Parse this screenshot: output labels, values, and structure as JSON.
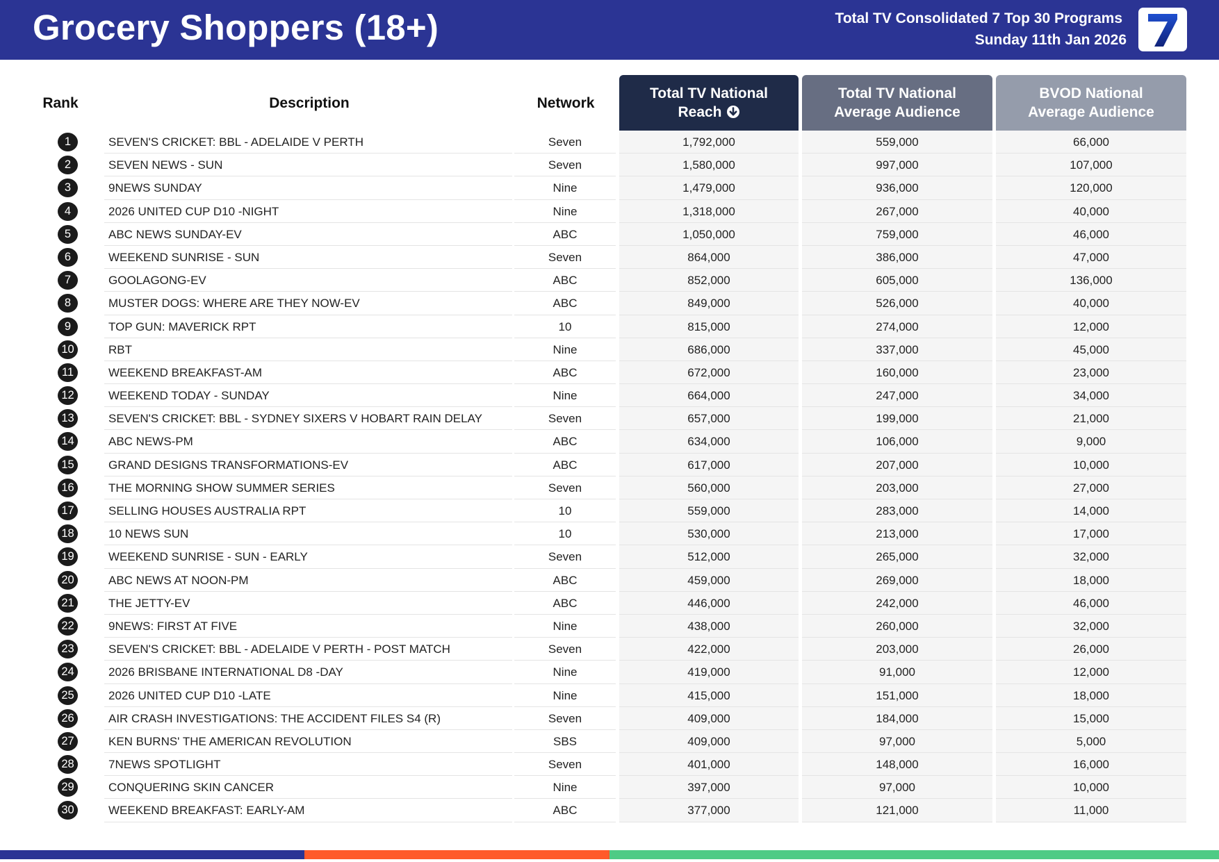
{
  "header": {
    "title": "Grocery Shoppers (18+)",
    "subtitle_line1": "Total TV Consolidated 7 Top 30 Programs",
    "subtitle_line2": "Sunday 11th Jan 2026",
    "logo_text": "7",
    "background_color": "#2b3494"
  },
  "table": {
    "columns": {
      "rank": "Rank",
      "description": "Description",
      "network": "Network",
      "reach": "Total TV National Reach",
      "reach_line1": "Total TV National",
      "reach_line2": "Reach",
      "avg_line1": "Total TV National",
      "avg_line2": "Average Audience",
      "bvod_line1": "BVOD National",
      "bvod_line2": "Average Audience"
    },
    "sort_icon": "circle-arrow-down-icon",
    "rows": [
      {
        "rank": "1",
        "description": "SEVEN'S CRICKET: BBL - ADELAIDE V PERTH",
        "network": "Seven",
        "reach": "1,792,000",
        "avg": "559,000",
        "bvod": "66,000"
      },
      {
        "rank": "2",
        "description": "SEVEN NEWS - SUN",
        "network": "Seven",
        "reach": "1,580,000",
        "avg": "997,000",
        "bvod": "107,000"
      },
      {
        "rank": "3",
        "description": "9NEWS SUNDAY",
        "network": "Nine",
        "reach": "1,479,000",
        "avg": "936,000",
        "bvod": "120,000"
      },
      {
        "rank": "4",
        "description": "2026 UNITED CUP D10 -NIGHT",
        "network": "Nine",
        "reach": "1,318,000",
        "avg": "267,000",
        "bvod": "40,000"
      },
      {
        "rank": "5",
        "description": "ABC NEWS SUNDAY-EV",
        "network": "ABC",
        "reach": "1,050,000",
        "avg": "759,000",
        "bvod": "46,000"
      },
      {
        "rank": "6",
        "description": "WEEKEND SUNRISE - SUN",
        "network": "Seven",
        "reach": "864,000",
        "avg": "386,000",
        "bvod": "47,000"
      },
      {
        "rank": "7",
        "description": "GOOLAGONG-EV",
        "network": "ABC",
        "reach": "852,000",
        "avg": "605,000",
        "bvod": "136,000"
      },
      {
        "rank": "8",
        "description": "MUSTER DOGS: WHERE ARE THEY NOW-EV",
        "network": "ABC",
        "reach": "849,000",
        "avg": "526,000",
        "bvod": "40,000"
      },
      {
        "rank": "9",
        "description": "TOP GUN: MAVERICK RPT",
        "network": "10",
        "reach": "815,000",
        "avg": "274,000",
        "bvod": "12,000"
      },
      {
        "rank": "10",
        "description": "RBT",
        "network": "Nine",
        "reach": "686,000",
        "avg": "337,000",
        "bvod": "45,000"
      },
      {
        "rank": "11",
        "description": "WEEKEND BREAKFAST-AM",
        "network": "ABC",
        "reach": "672,000",
        "avg": "160,000",
        "bvod": "23,000"
      },
      {
        "rank": "12",
        "description": "WEEKEND TODAY - SUNDAY",
        "network": "Nine",
        "reach": "664,000",
        "avg": "247,000",
        "bvod": "34,000"
      },
      {
        "rank": "13",
        "description": "SEVEN'S CRICKET: BBL - SYDNEY SIXERS V HOBART RAIN DELAY",
        "network": "Seven",
        "reach": "657,000",
        "avg": "199,000",
        "bvod": "21,000"
      },
      {
        "rank": "14",
        "description": "ABC NEWS-PM",
        "network": "ABC",
        "reach": "634,000",
        "avg": "106,000",
        "bvod": "9,000"
      },
      {
        "rank": "15",
        "description": "GRAND DESIGNS TRANSFORMATIONS-EV",
        "network": "ABC",
        "reach": "617,000",
        "avg": "207,000",
        "bvod": "10,000"
      },
      {
        "rank": "16",
        "description": "THE MORNING SHOW SUMMER SERIES",
        "network": "Seven",
        "reach": "560,000",
        "avg": "203,000",
        "bvod": "27,000"
      },
      {
        "rank": "17",
        "description": "SELLING HOUSES AUSTRALIA RPT",
        "network": "10",
        "reach": "559,000",
        "avg": "283,000",
        "bvod": "14,000"
      },
      {
        "rank": "18",
        "description": "10 NEWS SUN",
        "network": "10",
        "reach": "530,000",
        "avg": "213,000",
        "bvod": "17,000"
      },
      {
        "rank": "19",
        "description": "WEEKEND SUNRISE - SUN - EARLY",
        "network": "Seven",
        "reach": "512,000",
        "avg": "265,000",
        "bvod": "32,000"
      },
      {
        "rank": "20",
        "description": "ABC NEWS AT NOON-PM",
        "network": "ABC",
        "reach": "459,000",
        "avg": "269,000",
        "bvod": "18,000"
      },
      {
        "rank": "21",
        "description": "THE JETTY-EV",
        "network": "ABC",
        "reach": "446,000",
        "avg": "242,000",
        "bvod": "46,000"
      },
      {
        "rank": "22",
        "description": "9NEWS: FIRST AT FIVE",
        "network": "Nine",
        "reach": "438,000",
        "avg": "260,000",
        "bvod": "32,000"
      },
      {
        "rank": "23",
        "description": "SEVEN'S CRICKET: BBL - ADELAIDE V PERTH - POST MATCH",
        "network": "Seven",
        "reach": "422,000",
        "avg": "203,000",
        "bvod": "26,000"
      },
      {
        "rank": "24",
        "description": "2026 BRISBANE INTERNATIONAL D8 -DAY",
        "network": "Nine",
        "reach": "419,000",
        "avg": "91,000",
        "bvod": "12,000"
      },
      {
        "rank": "25",
        "description": "2026 UNITED CUP D10 -LATE",
        "network": "Nine",
        "reach": "415,000",
        "avg": "151,000",
        "bvod": "18,000"
      },
      {
        "rank": "26",
        "description": "AIR CRASH INVESTIGATIONS: THE ACCIDENT FILES S4 (R)",
        "network": "Seven",
        "reach": "409,000",
        "avg": "184,000",
        "bvod": "15,000"
      },
      {
        "rank": "27",
        "description": "KEN BURNS' THE AMERICAN REVOLUTION",
        "network": "SBS",
        "reach": "409,000",
        "avg": "97,000",
        "bvod": "5,000"
      },
      {
        "rank": "28",
        "description": "7NEWS SPOTLIGHT",
        "network": "Seven",
        "reach": "401,000",
        "avg": "148,000",
        "bvod": "16,000"
      },
      {
        "rank": "29",
        "description": "CONQUERING SKIN CANCER",
        "network": "Nine",
        "reach": "397,000",
        "avg": "97,000",
        "bvod": "10,000"
      },
      {
        "rank": "30",
        "description": "WEEKEND BREAKFAST: EARLY-AM",
        "network": "ABC",
        "reach": "377,000",
        "avg": "121,000",
        "bvod": "11,000"
      }
    ]
  },
  "colors": {
    "header_bg": "#2b3494",
    "reach_header": "#1f2b48",
    "avg_header": "#676e82",
    "bvod_header": "#959cab",
    "footer_blue": "#2b3494",
    "footer_orange": "#ff5a2a",
    "footer_green": "#4ecb85",
    "logo_blue": "#1f3fa8"
  }
}
